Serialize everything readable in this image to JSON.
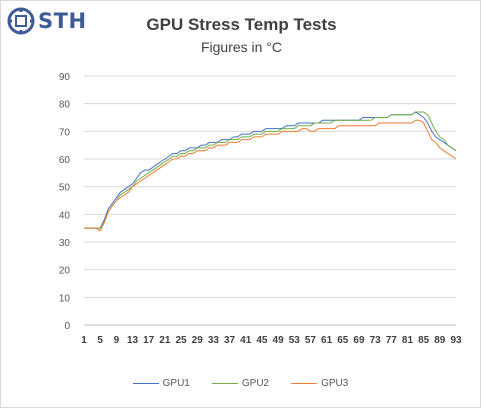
{
  "header": {
    "logo_text": "STH",
    "title": "GPU Stress Temp Tests",
    "subtitle": "Figures in °C"
  },
  "colors": {
    "GPU1": "#4472c4",
    "GPU2": "#70ad47",
    "GPU3": "#ed7d31",
    "logo": "#3f5b97"
  },
  "chart_data": {
    "type": "line",
    "title": "GPU Stress Temp Tests",
    "subtitle": "Figures in °C",
    "xlabel": "",
    "ylabel": "",
    "ylim": [
      0,
      90
    ],
    "yticks": [
      0,
      10,
      20,
      30,
      40,
      50,
      60,
      70,
      80,
      90
    ],
    "xticks": [
      1,
      5,
      9,
      13,
      17,
      21,
      25,
      29,
      33,
      37,
      41,
      45,
      49,
      53,
      57,
      61,
      65,
      69,
      73,
      77,
      81,
      85,
      89,
      93
    ],
    "grid": "horizontal",
    "legend_position": "bottom",
    "x": [
      1,
      2,
      3,
      4,
      5,
      6,
      7,
      8,
      9,
      10,
      11,
      12,
      13,
      14,
      15,
      16,
      17,
      18,
      19,
      20,
      21,
      22,
      23,
      24,
      25,
      26,
      27,
      28,
      29,
      30,
      31,
      32,
      33,
      34,
      35,
      36,
      37,
      38,
      39,
      40,
      41,
      42,
      43,
      44,
      45,
      46,
      47,
      48,
      49,
      50,
      51,
      52,
      53,
      54,
      55,
      56,
      57,
      58,
      59,
      60,
      61,
      62,
      63,
      64,
      65,
      66,
      67,
      68,
      69,
      70,
      71,
      72,
      73,
      74,
      75,
      76,
      77,
      78,
      79,
      80,
      81,
      82,
      83,
      84,
      85,
      86,
      87,
      88,
      89,
      90,
      91,
      92,
      93
    ],
    "series": [
      {
        "name": "GPU1",
        "values": [
          35,
          35,
          35,
          35,
          35,
          38,
          42,
          44,
          46,
          48,
          49,
          50,
          51,
          53,
          55,
          56,
          56,
          57,
          58,
          59,
          60,
          61,
          62,
          62,
          63,
          63,
          64,
          64,
          64,
          65,
          65,
          66,
          66,
          66,
          67,
          67,
          67,
          68,
          68,
          69,
          69,
          69,
          70,
          70,
          70,
          71,
          71,
          71,
          71,
          71,
          72,
          72,
          72,
          73,
          73,
          73,
          73,
          73,
          73,
          74,
          74,
          74,
          74,
          74,
          74,
          74,
          74,
          74,
          74,
          75,
          75,
          75,
          75,
          75,
          75,
          75,
          76,
          76,
          76,
          76,
          76,
          76,
          77,
          76,
          75,
          73,
          70,
          68,
          67,
          66,
          65,
          64,
          63
        ]
      },
      {
        "name": "GPU2",
        "values": [
          35,
          35,
          35,
          35,
          35,
          37,
          41,
          43,
          45,
          47,
          48,
          49,
          50,
          52,
          53,
          54,
          55,
          56,
          57,
          58,
          59,
          60,
          61,
          61,
          62,
          62,
          63,
          63,
          64,
          64,
          64,
          65,
          65,
          66,
          66,
          66,
          67,
          67,
          67,
          68,
          68,
          68,
          69,
          69,
          69,
          70,
          70,
          70,
          70,
          71,
          71,
          71,
          71,
          72,
          72,
          72,
          72,
          73,
          73,
          73,
          73,
          73,
          74,
          74,
          74,
          74,
          74,
          74,
          74,
          74,
          74,
          74,
          75,
          75,
          75,
          75,
          76,
          76,
          76,
          76,
          76,
          76,
          77,
          77,
          77,
          76,
          73,
          70,
          68,
          67,
          65,
          64,
          63
        ]
      },
      {
        "name": "GPU3",
        "values": [
          35,
          35,
          35,
          35,
          34,
          37,
          41,
          43,
          45,
          46,
          47,
          48,
          50,
          51,
          52,
          53,
          54,
          55,
          56,
          57,
          58,
          59,
          60,
          60,
          61,
          61,
          62,
          62,
          63,
          63,
          63,
          64,
          64,
          65,
          65,
          65,
          66,
          66,
          66,
          67,
          67,
          67,
          68,
          68,
          68,
          69,
          69,
          69,
          69,
          70,
          70,
          70,
          70,
          70,
          71,
          71,
          70,
          70,
          71,
          71,
          71,
          71,
          71,
          72,
          72,
          72,
          72,
          72,
          72,
          72,
          72,
          72,
          72,
          73,
          73,
          73,
          73,
          73,
          73,
          73,
          73,
          73,
          74,
          74,
          73,
          70,
          67,
          66,
          64,
          63,
          62,
          61,
          60
        ]
      }
    ]
  }
}
